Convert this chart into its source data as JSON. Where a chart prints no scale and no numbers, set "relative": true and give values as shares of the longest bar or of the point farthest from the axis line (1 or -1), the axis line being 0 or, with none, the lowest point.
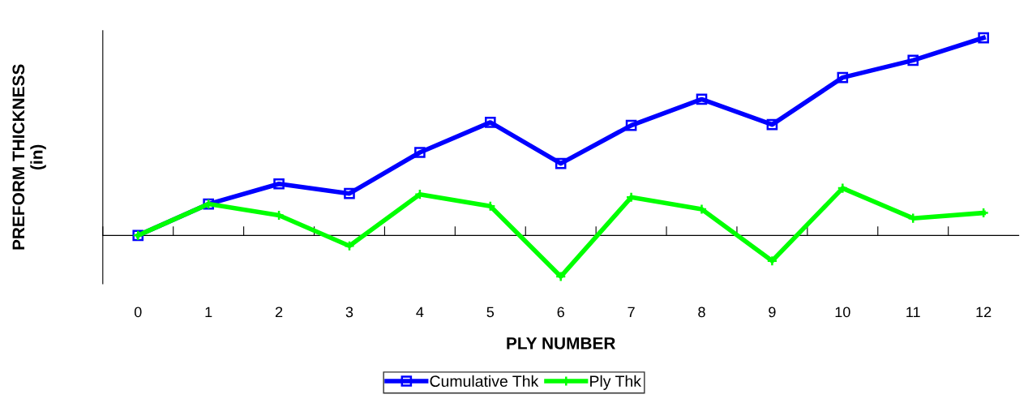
{
  "chart_data": {
    "type": "line",
    "xlabel": "PLY NUMBER",
    "ylabel": "PREFORM THICKNESS\n(in)",
    "relative": true,
    "categories": [
      "0",
      "1",
      "2",
      "3",
      "4",
      "5",
      "6",
      "7",
      "8",
      "9",
      "10",
      "11",
      "12"
    ],
    "series": [
      {
        "name": "Cumulative Thk",
        "color": "#0000ff",
        "marker": "square",
        "values": [
          0,
          0.159,
          0.261,
          0.212,
          0.42,
          0.572,
          0.364,
          0.557,
          0.689,
          0.561,
          0.799,
          0.886,
          1
        ]
      },
      {
        "name": "Ply Thk",
        "color": "#00ff00",
        "marker": "cross",
        "values": [
          0,
          0.159,
          0.102,
          -0.053,
          0.208,
          0.148,
          -0.208,
          0.193,
          0.133,
          -0.129,
          0.239,
          0.087,
          0.114
        ]
      }
    ],
    "legend": "bottom",
    "grid": false,
    "line_style": "solid"
  }
}
